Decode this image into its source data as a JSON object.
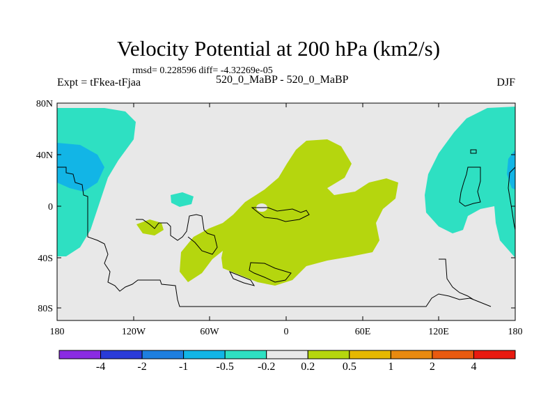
{
  "title": "Velocity Potential at 200 hPa (km2/s)",
  "stats": "rmsd= 0.228596 diff= -4.32269e-05",
  "left_label": "Expt = tFkea-tFjaa",
  "center_label": "520_0_MaBP - 520_0_MaBP",
  "right_label": "DJF",
  "axes": {
    "lat_ticks": [
      "80N",
      "40N",
      "0",
      "40S",
      "80S"
    ],
    "lon_ticks": [
      "180",
      "120W",
      "60W",
      "0",
      "60E",
      "120E",
      "180"
    ]
  },
  "colorbar": {
    "colors": [
      "#8a2be2",
      "#2a3bd8",
      "#1e7fe0",
      "#12b5e6",
      "#2ee0c2",
      "#e8e8e8",
      "#b5d60e",
      "#e6b800",
      "#e88a10",
      "#e85a10",
      "#e81a10"
    ],
    "labels": [
      "-4",
      "-2",
      "-1",
      "-0.5",
      "-0.2",
      "0.2",
      "0.5",
      "1",
      "2",
      "4"
    ]
  }
}
